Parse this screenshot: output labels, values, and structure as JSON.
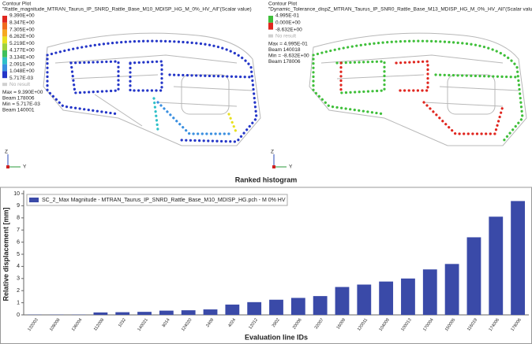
{
  "left_plot": {
    "heading": "Contour Plot",
    "subtitle": "\"Rattle_magnitude_MTRAN_Taurus_IP_SNRD_Rattle_Base_M10_MDISP_HG_M_0%_HV_All\"(Scalar value)",
    "legend_labels": [
      "9.390E+00",
      "8.347E+00",
      "7.305E+00",
      "6.262E+00",
      "5.219E+00",
      "4.177E+00",
      "3.134E+00",
      "2.091E+00",
      "1.048E+00",
      "5.717E-03"
    ],
    "legend_colors": [
      "#e0261f",
      "#f06a1c",
      "#f6a821",
      "#e8e01e",
      "#9fd23a",
      "#3fbf5a",
      "#2fc0c8",
      "#3a8fe0",
      "#2436c8"
    ],
    "no_result": "No result",
    "stats": [
      "Max = 9.390E+00",
      "Beam 178006",
      "Min = 5.717E-03",
      "Beam 140001"
    ],
    "axis_z": "Z",
    "axis_y": "Y"
  },
  "right_plot": {
    "heading": "Contour Plot",
    "subtitle": "\"Dynamic_Tolerance_dispZ_MTRAN_Taurus_IP_SNR0_Rattle_Base_M13_MDISP_HG_M_0%_HV_All\"(Scalar value",
    "legend_labels": [
      "4.995E-01",
      "0.000E+00",
      "-8.632E+00"
    ],
    "legend_colors": [
      "#3fbf3a",
      "#e0261f"
    ],
    "no_result": "No result",
    "stats": [
      "Max = 4.995E-01",
      "Beam 140018",
      "Min = -8.632E+00",
      "Beam 178006"
    ],
    "axis_z": "Z",
    "axis_y": "Y"
  },
  "chart_data": {
    "type": "bar",
    "title": "Ranked histogram",
    "y_label": "Relative displacement [mm]",
    "x_label": "Evaluation line IDs",
    "categories": [
      "132003",
      "108008",
      "136004",
      "112008",
      "1032",
      "140021",
      "8014",
      "124020",
      "2409",
      "4024",
      "12012",
      "2802",
      "20006",
      "32007",
      "16009",
      "120011",
      "104009",
      "100013",
      "170004",
      "150005",
      "116019",
      "174006",
      "178006"
    ],
    "series": [
      {
        "name": "SC_2_Max Magnitude - MTRAN_Taurus_IP_SNRD_Rattle_Base_M10_MDISP_HG.pch - M 0% HV",
        "color": "#3a4aa8",
        "values": [
          0.02,
          0.02,
          0.02,
          0.2,
          0.22,
          0.25,
          0.35,
          0.38,
          0.45,
          0.85,
          1.05,
          1.25,
          1.4,
          1.55,
          2.3,
          2.5,
          2.75,
          3.0,
          3.75,
          4.2,
          6.4,
          8.1,
          9.39
        ]
      }
    ],
    "ylim": [
      0,
      10
    ],
    "yticks": [
      0,
      1,
      2,
      3,
      4,
      5,
      6,
      7,
      8,
      9,
      10
    ],
    "grid": false,
    "legend": "top-left"
  }
}
